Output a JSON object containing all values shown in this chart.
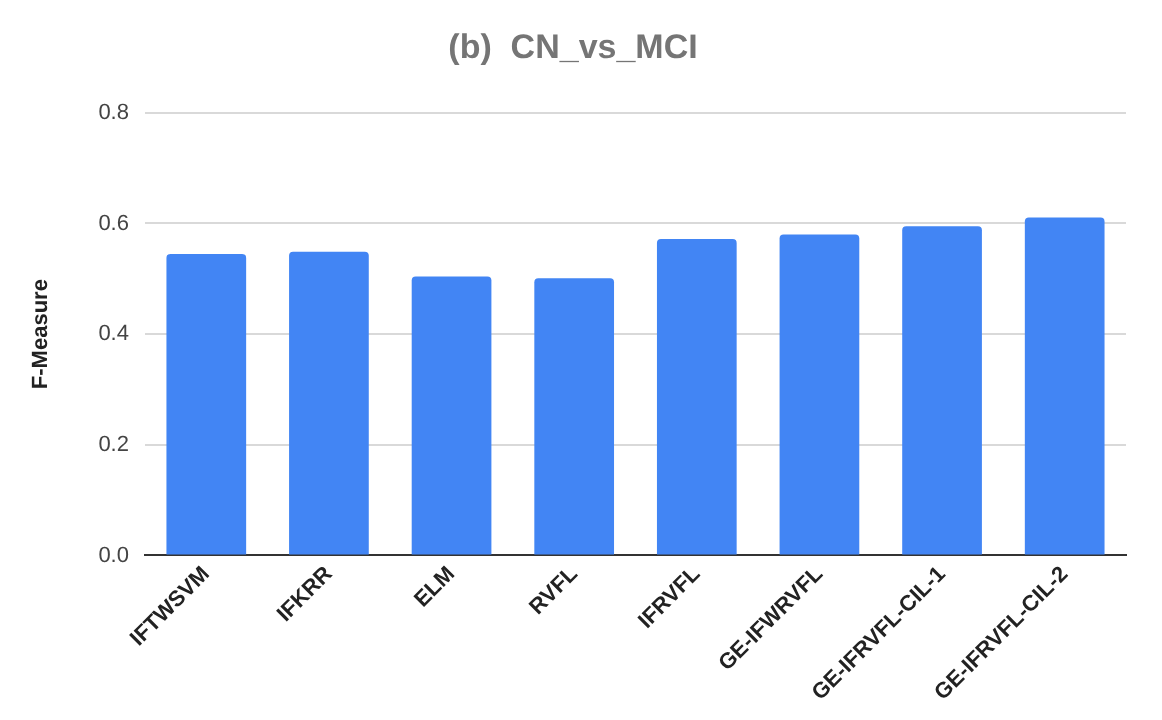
{
  "chart_data": {
    "type": "bar",
    "title": "(b)  CN_vs_MCI",
    "ylabel": "F-Measure",
    "categories": [
      "IFTWSVM",
      "IFKRR",
      "ELM",
      "RVFL",
      "IFRVFL",
      "GE-IFWRVFL",
      "GE-IFRVFL-CIL-1",
      "GE-IFRVFL-CIL-2"
    ],
    "values": [
      0.545,
      0.549,
      0.504,
      0.501,
      0.572,
      0.58,
      0.595,
      0.611
    ],
    "color": "#4285f4",
    "ylim": [
      0,
      0.8
    ],
    "yticks": [
      {
        "value": 0,
        "label": "0.0"
      },
      {
        "value": 0.2,
        "label": "0.2"
      },
      {
        "value": 0.4,
        "label": "0.4"
      },
      {
        "value": 0.6,
        "label": "0.6"
      },
      {
        "value": 0.8,
        "label": "0.8"
      }
    ],
    "grid": "y",
    "legend": false
  }
}
